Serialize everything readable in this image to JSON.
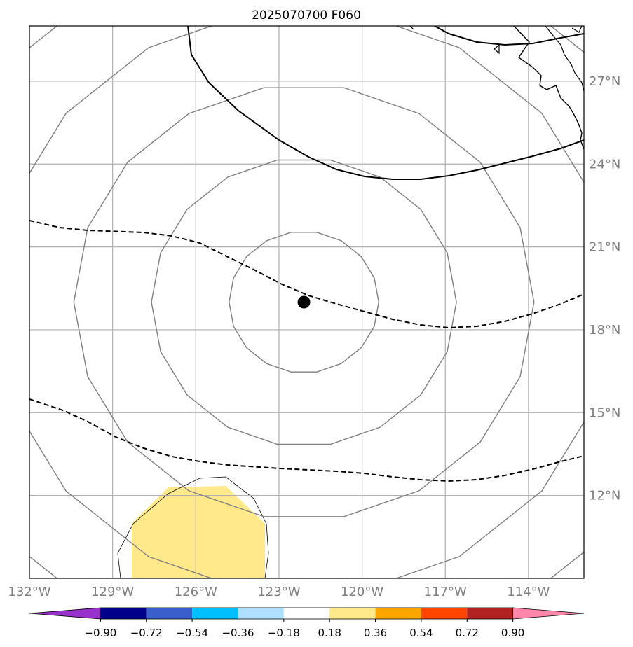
{
  "title": "2025070700 F060",
  "map": {
    "lon_range": [
      -132,
      -112
    ],
    "lat_range": [
      9,
      29
    ],
    "lon_ticks": [
      {
        "value": -132,
        "label": "132°W"
      },
      {
        "value": -129,
        "label": "129°W"
      },
      {
        "value": -126,
        "label": "126°W"
      },
      {
        "value": -123,
        "label": "123°W"
      },
      {
        "value": -120,
        "label": "120°W"
      },
      {
        "value": -117,
        "label": "117°W"
      },
      {
        "value": -114,
        "label": "114°W"
      }
    ],
    "lat_ticks": [
      {
        "value": 27,
        "label": "27°N"
      },
      {
        "value": 24,
        "label": "24°N"
      },
      {
        "value": 21,
        "label": "21°N"
      },
      {
        "value": 18,
        "label": "18°N"
      },
      {
        "value": 15,
        "label": "15°N"
      },
      {
        "value": 12,
        "label": "12°N"
      }
    ],
    "center_marker": {
      "lon": -122.1,
      "lat": 19.0
    },
    "range_rings_deg": [
      2.7,
      5.5,
      8.3,
      11.2,
      14.0
    ],
    "colors": {
      "grid": "#b0b0b0",
      "ring": "#808080",
      "coast": "#000000",
      "contour": "#000000",
      "fill_positive": "#ffe98a"
    }
  },
  "colorbar": {
    "labels": [
      "−0.90",
      "−0.72",
      "−0.54",
      "−0.36",
      "−0.18",
      "0.18",
      "0.36",
      "0.54",
      "0.72",
      "0.90"
    ],
    "under_color": "#9932cc",
    "over_color": "#ff88aa",
    "colors": [
      "#00008b",
      "#3a5fcd",
      "#00bfff",
      "#b0e0ff",
      "#ffffff",
      "#ffe98a",
      "#ffa500",
      "#ff4500",
      "#b22222"
    ]
  }
}
